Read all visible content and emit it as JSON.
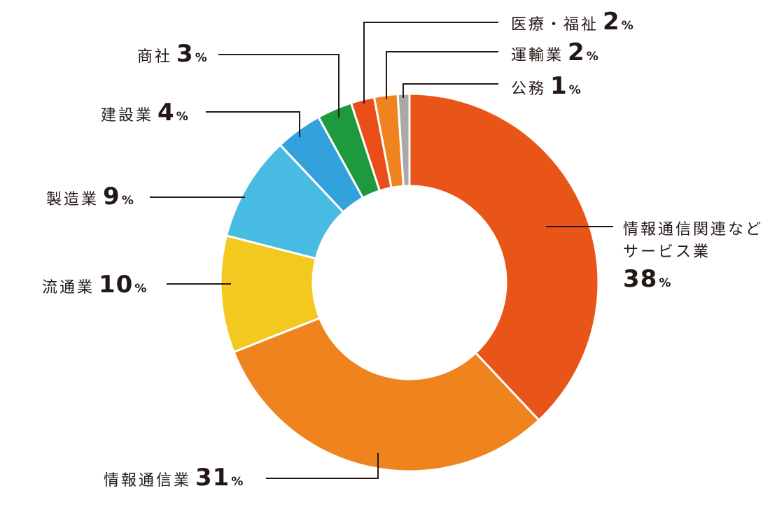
{
  "chart_data": {
    "type": "pie",
    "donut": true,
    "unit": "%",
    "slices": [
      {
        "name": "情報通信関連など サービス業",
        "value": 38,
        "color": "#E95419"
      },
      {
        "name": "情報通信業",
        "value": 31,
        "color": "#EF841E"
      },
      {
        "name": "流通業",
        "value": 10,
        "color": "#F4C91F"
      },
      {
        "name": "製造業",
        "value": 9,
        "color": "#48BBE2"
      },
      {
        "name": "建設業",
        "value": 4,
        "color": "#33A1DC"
      },
      {
        "name": "商社",
        "value": 3,
        "color": "#1F993D"
      },
      {
        "name": "医療・福祉",
        "value": 2,
        "color": "#E94E18"
      },
      {
        "name": "運輸業",
        "value": 2,
        "color": "#EF841E"
      },
      {
        "name": "公務",
        "value": 1,
        "color": "#A9A9A9"
      }
    ],
    "labels": {
      "services_line1": "情報通信関連など",
      "services_line2": "サービス業",
      "services_value": "38",
      "infocom_name": "情報通信業",
      "infocom_value": "31",
      "retail_name": "流通業",
      "retail_value": "10",
      "manufacturing_name": "製造業",
      "manufacturing_value": "9",
      "construction_name": "建設業",
      "construction_value": "4",
      "trading_name": "商社",
      "trading_value": "3",
      "medical_name": "医療・福祉",
      "medical_value": "2",
      "transport_name": "運輸業",
      "transport_value": "2",
      "public_name": "公務",
      "public_value": "1",
      "percent_sign": "%"
    }
  }
}
